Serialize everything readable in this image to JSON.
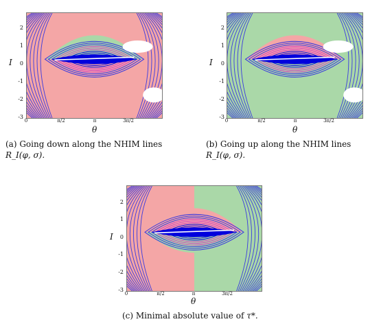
{
  "figure": {
    "panels": [
      {
        "id": "a",
        "caption_main": "(a) Going down along the NHIM lines",
        "caption_math": "R_I(φ, σ).",
        "region_left_color": "#f4a6a6",
        "region_right_color": "#f4a6a6",
        "region_top_color": "#aad8a8",
        "region_bottom_color": "#f4a6a6",
        "blank_regions": true
      },
      {
        "id": "b",
        "caption_main": "(b) Going up along the NHIM lines",
        "caption_math": "R_I(φ, σ).",
        "region_left_color": "#aad8a8",
        "region_right_color": "#aad8a8",
        "region_top_color": "#f4a6a6",
        "region_bottom_color": "#aad8a8",
        "blank_regions": true
      },
      {
        "id": "c",
        "caption_main": "(c) Minimal absolute value of",
        "caption_math": "τ*.",
        "region_left_color": "#f4a6a6",
        "region_right_color": "#aad8a8",
        "region_top_color": "#f4a6a6",
        "region_bottom_color": "#aad8a8",
        "blank_regions": false
      }
    ],
    "axes": {
      "ylabel": "I",
      "xlabel": "θ",
      "yticks": [
        "2",
        "1",
        "0",
        "-1",
        "-2",
        "-3"
      ],
      "xticks": [
        "0",
        "π/2",
        "π",
        "3π/2"
      ]
    },
    "colors": {
      "contour": "#3a3adf",
      "dense_core": "#0000dd",
      "magenta": "#d040c0",
      "white_stripe": "#ffffff"
    }
  }
}
